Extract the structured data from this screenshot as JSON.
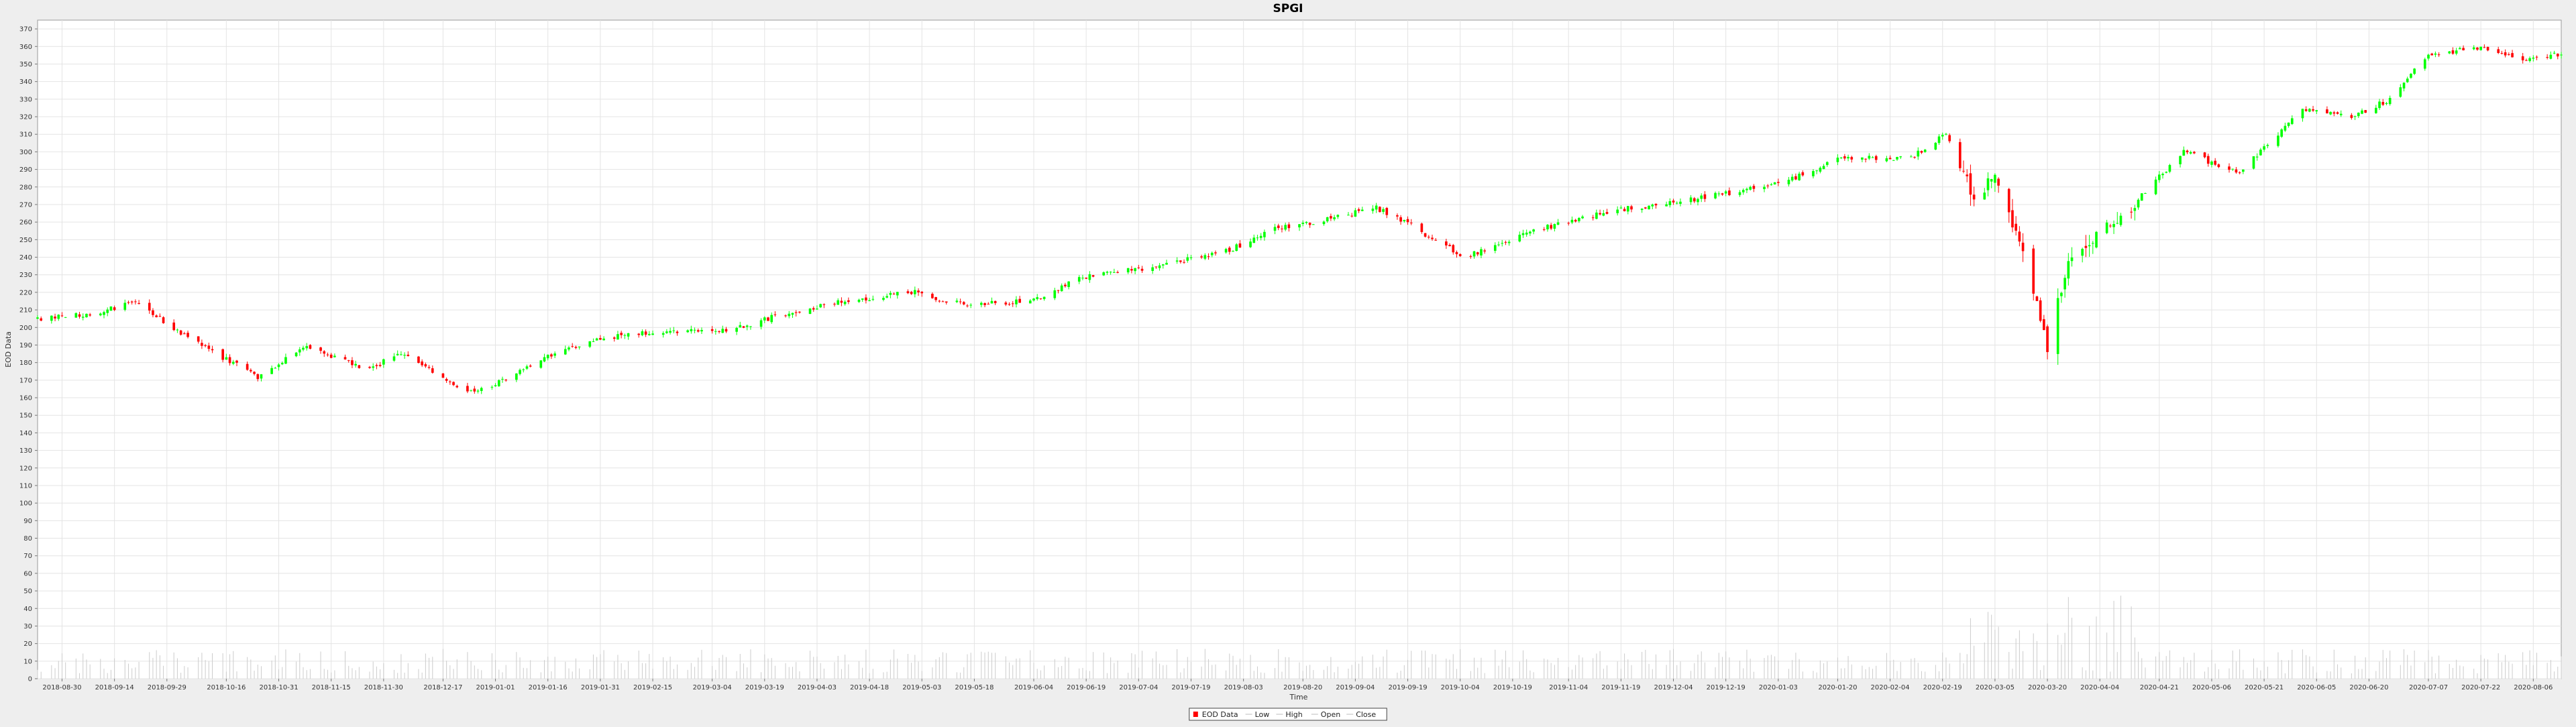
{
  "chart_data": {
    "type": "candlestick",
    "title": "SPGI",
    "xlabel": "Time",
    "ylabel": "EOD Data",
    "ylim": [
      0,
      375
    ],
    "y_ticks": [
      0,
      10,
      20,
      30,
      40,
      50,
      60,
      70,
      80,
      90,
      100,
      110,
      120,
      130,
      140,
      150,
      160,
      170,
      180,
      190,
      200,
      210,
      220,
      230,
      240,
      250,
      260,
      270,
      280,
      290,
      300,
      310,
      320,
      330,
      340,
      350,
      360,
      370
    ],
    "x_start": "2018-08-23",
    "x_end": "2020-08-14",
    "x_ticks": [
      "2018-08-30",
      "2018-09-14",
      "2018-09-29",
      "2018-10-16",
      "2018-10-31",
      "2018-11-15",
      "2018-11-30",
      "2018-12-17",
      "2019-01-01",
      "2019-01-16",
      "2019-01-31",
      "2019-02-15",
      "2019-03-04",
      "2019-03-19",
      "2019-04-03",
      "2019-04-18",
      "2019-05-03",
      "2019-05-18",
      "2019-06-04",
      "2019-06-19",
      "2019-07-04",
      "2019-07-19",
      "2019-08-03",
      "2019-08-20",
      "2019-09-04",
      "2019-09-19",
      "2019-10-04",
      "2019-10-19",
      "2019-11-04",
      "2019-11-19",
      "2019-12-04",
      "2019-12-19",
      "2020-01-03",
      "2020-01-20",
      "2020-02-04",
      "2020-02-19",
      "2020-03-05",
      "2020-03-20",
      "2020-04-04",
      "2020-04-21",
      "2020-05-06",
      "2020-05-21",
      "2020-06-05",
      "2020-06-20",
      "2020-07-07",
      "2020-07-22",
      "2020-08-06"
    ],
    "grid": true,
    "up_color": "#00ff00",
    "down_color": "#ff0000",
    "volume_color": "#cccccc",
    "price_anchors": [
      [
        "2018-08-23",
        205
      ],
      [
        "2018-09-05",
        207
      ],
      [
        "2018-09-20",
        214
      ],
      [
        "2018-10-02",
        198
      ],
      [
        "2018-10-12",
        186
      ],
      [
        "2018-10-25",
        172
      ],
      [
        "2018-11-08",
        189
      ],
      [
        "2018-11-26",
        176
      ],
      [
        "2018-12-05",
        186
      ],
      [
        "2018-12-24",
        163
      ],
      [
        "2019-01-04",
        170
      ],
      [
        "2019-01-20",
        188
      ],
      [
        "2019-02-10",
        197
      ],
      [
        "2019-03-08",
        198
      ],
      [
        "2019-03-25",
        208
      ],
      [
        "2019-04-10",
        215
      ],
      [
        "2019-05-01",
        220
      ],
      [
        "2019-05-15",
        213
      ],
      [
        "2019-06-03",
        215
      ],
      [
        "2019-06-20",
        230
      ],
      [
        "2019-07-10",
        235
      ],
      [
        "2019-07-30",
        244
      ],
      [
        "2019-08-10",
        255
      ],
      [
        "2019-08-30",
        263
      ],
      [
        "2019-09-10",
        268
      ],
      [
        "2019-09-20",
        258
      ],
      [
        "2019-10-05",
        240
      ],
      [
        "2019-10-25",
        255
      ],
      [
        "2019-11-15",
        266
      ],
      [
        "2019-12-10",
        273
      ],
      [
        "2020-01-05",
        283
      ],
      [
        "2020-01-20",
        296
      ],
      [
        "2020-02-10",
        297
      ],
      [
        "2020-02-20",
        310
      ],
      [
        "2020-02-28",
        272
      ],
      [
        "2020-03-05",
        290
      ],
      [
        "2020-03-16",
        220
      ],
      [
        "2020-03-20",
        190
      ],
      [
        "2020-03-26",
        240
      ],
      [
        "2020-04-10",
        263
      ],
      [
        "2020-04-28",
        300
      ],
      [
        "2020-05-14",
        288
      ],
      [
        "2020-06-01",
        325
      ],
      [
        "2020-06-15",
        320
      ],
      [
        "2020-06-26",
        330
      ],
      [
        "2020-07-07",
        355
      ],
      [
        "2020-07-22",
        360
      ],
      [
        "2020-08-05",
        352
      ],
      [
        "2020-08-14",
        356
      ]
    ],
    "volume_range": [
      3,
      48
    ],
    "legend": [
      {
        "label": "EOD Data",
        "swatch": "candle"
      },
      {
        "label": "Low",
        "swatch": "line"
      },
      {
        "label": "High",
        "swatch": "line"
      },
      {
        "label": "Open",
        "swatch": "line"
      },
      {
        "label": "Close",
        "swatch": "line"
      }
    ],
    "legend_position": "bottom-center"
  }
}
